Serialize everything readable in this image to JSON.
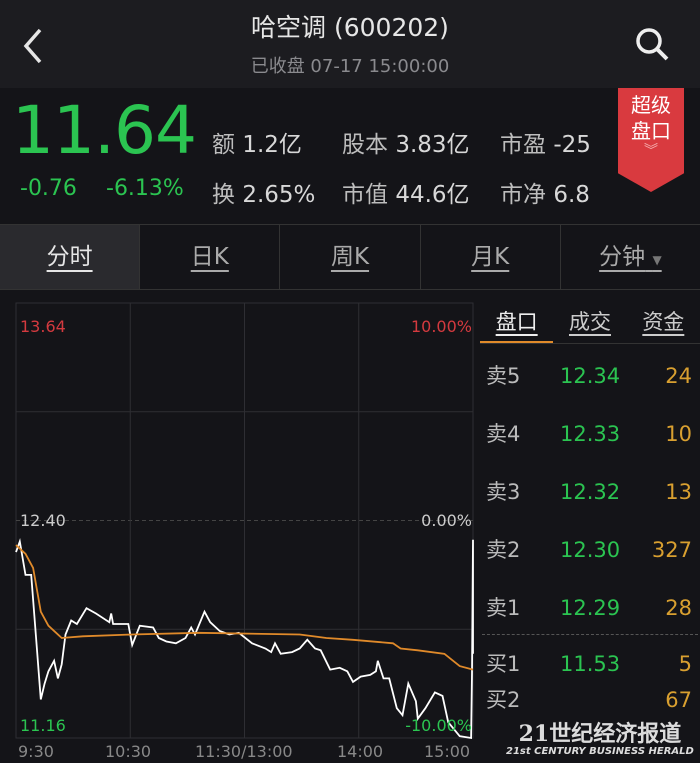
{
  "header": {
    "title": "哈空调 (600202)",
    "status": "已收盘 07-17 15:00:00",
    "back_icon": "chevron-left-icon",
    "search_icon": "search-icon"
  },
  "quote": {
    "price": "11.64",
    "change": "-0.76",
    "change_pct": "-6.13%",
    "stats": [
      {
        "k": "额",
        "v": "1.2亿"
      },
      {
        "k": "股本",
        "v": "3.83亿"
      },
      {
        "k": "市盈",
        "v": "-25"
      },
      {
        "k": "换",
        "v": "2.65%"
      },
      {
        "k": "市值",
        "v": "44.6亿"
      },
      {
        "k": "市净",
        "v": "6.8"
      }
    ],
    "badge": "超级盘口",
    "badge_line1": "超级",
    "badge_line2": "盘口"
  },
  "tabs": [
    {
      "label": "分时",
      "active": true
    },
    {
      "label": "日K"
    },
    {
      "label": "周K"
    },
    {
      "label": "月K"
    },
    {
      "label": "分钟"
    }
  ],
  "colors": {
    "up": "#e03c3c",
    "down": "#2bc451",
    "avg": "#e08a2a",
    "volume": "#d9a030"
  },
  "order_panel": {
    "tabs": [
      "盘口",
      "成交",
      "资金"
    ],
    "asks": [
      {
        "n": "卖5",
        "p": "12.34",
        "v": "24"
      },
      {
        "n": "卖4",
        "p": "12.33",
        "v": "10"
      },
      {
        "n": "卖3",
        "p": "12.32",
        "v": "13"
      },
      {
        "n": "卖2",
        "p": "12.30",
        "v": "327"
      },
      {
        "n": "卖1",
        "p": "12.29",
        "v": "28"
      }
    ],
    "bids": [
      {
        "n": "买1",
        "p": "11.53",
        "v": "5"
      },
      {
        "n": "买2",
        "p": "",
        "v": "67"
      }
    ]
  },
  "watermark": {
    "cn": "21世纪经济报道",
    "en": "21st CENTURY BUSINESS HERALD"
  },
  "chart_data": {
    "type": "line",
    "price_labels": {
      "top": "13.64",
      "mid": "12.40",
      "bottom": "11.16"
    },
    "pct_labels": {
      "top": "10.00%",
      "mid": "0.00%",
      "bottom": "-10.00%"
    },
    "x_ticks": [
      "9:30",
      "10:30",
      "11:30/13:00",
      "14:00",
      "15:00"
    ],
    "ylim": [
      11.16,
      13.64
    ],
    "xlim_minutes": [
      0,
      240
    ],
    "series": [
      {
        "key": "price",
        "color": "#ffffff",
        "points": [
          [
            0,
            12.22
          ],
          [
            2,
            12.28
          ],
          [
            5,
            12.09
          ],
          [
            8,
            12.09
          ],
          [
            10,
            11.81
          ],
          [
            13,
            11.38
          ],
          [
            15,
            11.47
          ],
          [
            17,
            11.54
          ],
          [
            20,
            11.6
          ],
          [
            22,
            11.5
          ],
          [
            24,
            11.58
          ],
          [
            26,
            11.75
          ],
          [
            29,
            11.83
          ],
          [
            32,
            11.81
          ],
          [
            37,
            11.9
          ],
          [
            42,
            11.87
          ],
          [
            49,
            11.82
          ],
          [
            50,
            11.87
          ],
          [
            51,
            11.81
          ],
          [
            59,
            11.81
          ],
          [
            61,
            11.69
          ],
          [
            65,
            11.8
          ],
          [
            72,
            11.79
          ],
          [
            75,
            11.73
          ],
          [
            79,
            11.71
          ],
          [
            84,
            11.7
          ],
          [
            89,
            11.73
          ],
          [
            92,
            11.79
          ],
          [
            94,
            11.75
          ],
          [
            99,
            11.88
          ],
          [
            102,
            11.82
          ],
          [
            107,
            11.77
          ],
          [
            112,
            11.75
          ],
          [
            117,
            11.76
          ],
          [
            124,
            11.7
          ],
          [
            131,
            11.67
          ],
          [
            134,
            11.65
          ],
          [
            136,
            11.7
          ],
          [
            139,
            11.64
          ],
          [
            145,
            11.65
          ],
          [
            149,
            11.67
          ],
          [
            153,
            11.72
          ],
          [
            157,
            11.67
          ],
          [
            160,
            11.66
          ],
          [
            165,
            11.55
          ],
          [
            170,
            11.56
          ],
          [
            174,
            11.54
          ],
          [
            177,
            11.48
          ],
          [
            181,
            11.51
          ],
          [
            186,
            11.52
          ],
          [
            189,
            11.54
          ],
          [
            190,
            11.6
          ],
          [
            193,
            11.5
          ],
          [
            196,
            11.5
          ],
          [
            200,
            11.33
          ],
          [
            203,
            11.29
          ],
          [
            206,
            11.47
          ],
          [
            210,
            11.37
          ],
          [
            211,
            11.27
          ],
          [
            215,
            11.33
          ],
          [
            220,
            11.42
          ],
          [
            224,
            11.4
          ],
          [
            227,
            11.25
          ],
          [
            233,
            11.17
          ],
          [
            239,
            11.16
          ],
          [
            239.5,
            11.53
          ],
          [
            240,
            12.29
          ],
          [
            240,
            11.64
          ]
        ]
      },
      {
        "key": "avg",
        "color": "#e08a2a",
        "points": [
          [
            0,
            12.26
          ],
          [
            5,
            12.21
          ],
          [
            9,
            12.13
          ],
          [
            13,
            11.88
          ],
          [
            17,
            11.8
          ],
          [
            24,
            11.73
          ],
          [
            35,
            11.74
          ],
          [
            61,
            11.75
          ],
          [
            96,
            11.76
          ],
          [
            149,
            11.75
          ],
          [
            163,
            11.73
          ],
          [
            177,
            11.72
          ],
          [
            198,
            11.7
          ],
          [
            202,
            11.67
          ],
          [
            211,
            11.66
          ],
          [
            225,
            11.64
          ],
          [
            233,
            11.57
          ],
          [
            240,
            11.55
          ]
        ]
      }
    ]
  }
}
